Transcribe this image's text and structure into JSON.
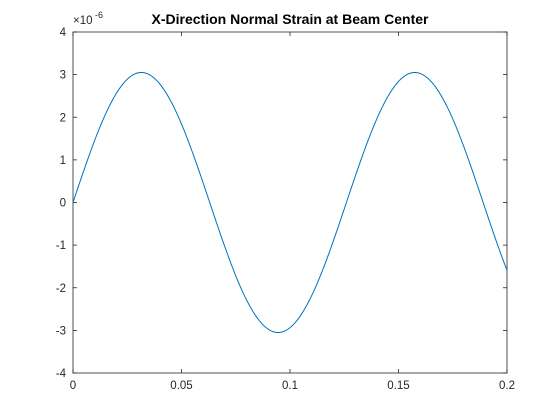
{
  "chart_data": {
    "type": "line",
    "title": "X-Direction Normal Strain at Beam Center",
    "xlabel": "",
    "ylabel": "",
    "xlim": [
      0,
      0.2
    ],
    "ylim": [
      -4,
      4
    ],
    "y_exponent_label": "×10",
    "y_exponent_power": "-6",
    "x_ticks": [
      0,
      0.05,
      0.1,
      0.15,
      0.2
    ],
    "x_tick_labels": [
      "0",
      "0.05",
      "0.1",
      "0.15",
      "0.2"
    ],
    "y_ticks": [
      -4,
      -3,
      -2,
      -1,
      0,
      1,
      2,
      3,
      4
    ],
    "y_tick_labels": [
      "-4",
      "-3",
      "-2",
      "-1",
      "0",
      "1",
      "2",
      "3",
      "4"
    ],
    "grid": false,
    "series": [
      {
        "color": "#0072BD",
        "amplitude": 3.05,
        "period": 0.126,
        "x": [
          0,
          0.005,
          0.01,
          0.015,
          0.02,
          0.025,
          0.0315,
          0.035,
          0.04,
          0.045,
          0.05,
          0.055,
          0.06,
          0.063,
          0.065,
          0.07,
          0.075,
          0.08,
          0.085,
          0.09,
          0.0945,
          0.1,
          0.105,
          0.11,
          0.115,
          0.12,
          0.125,
          0.126,
          0.13,
          0.135,
          0.14,
          0.145,
          0.15,
          0.1575,
          0.16,
          0.165,
          0.17,
          0.175,
          0.18,
          0.185,
          0.189,
          0.19,
          0.195,
          0.2
        ],
        "y": [
          0,
          0.75,
          1.45,
          2.08,
          2.59,
          2.91,
          3.05,
          3.0,
          2.79,
          2.38,
          1.81,
          1.13,
          0.38,
          0,
          -0.23,
          -0.97,
          -1.67,
          -2.25,
          -2.7,
          -2.97,
          -3.05,
          -2.93,
          -2.61,
          -2.1,
          -1.47,
          -0.77,
          -0.15,
          0,
          0.6,
          1.31,
          1.96,
          2.5,
          2.88,
          3.05,
          3.03,
          2.83,
          2.45,
          1.91,
          1.25,
          0.51,
          0,
          -0.1,
          -0.84,
          -1.55
        ]
      }
    ]
  }
}
